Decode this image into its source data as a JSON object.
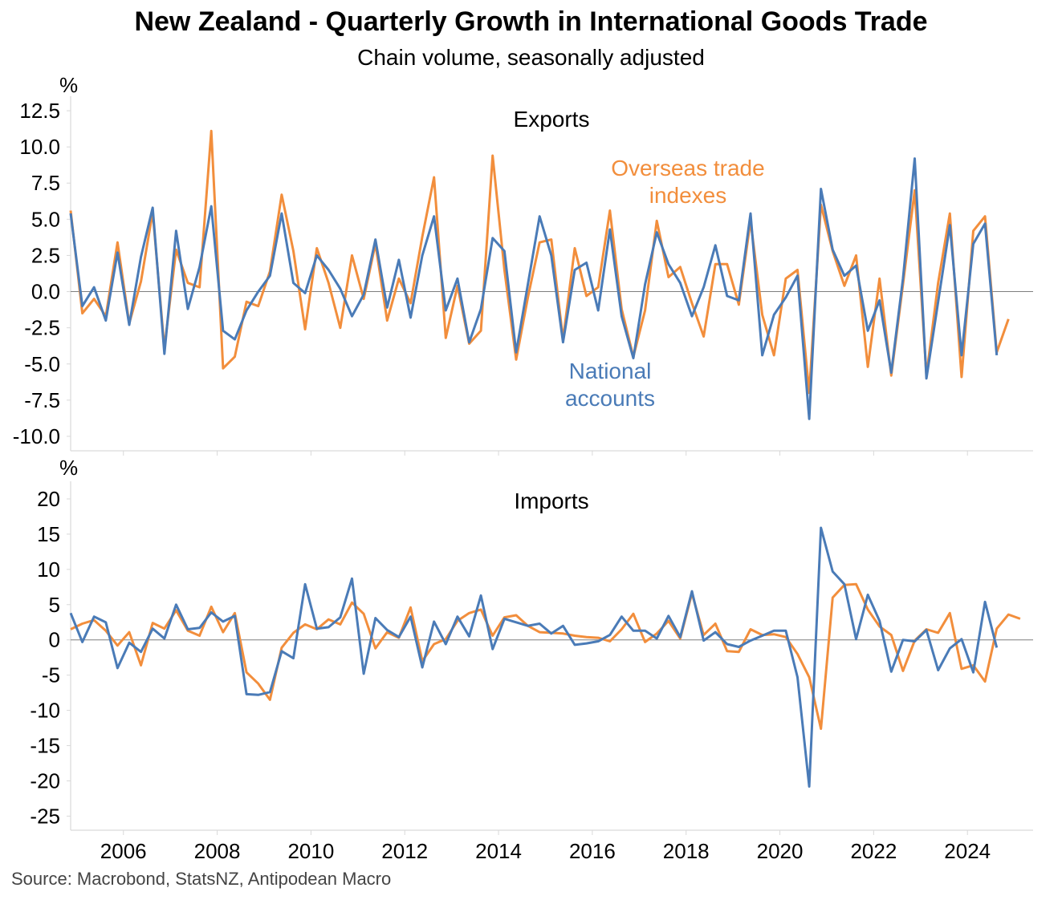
{
  "title": "New Zealand - Quarterly Growth in International Goods Trade",
  "subtitle": "Chain volume, seasonally adjusted",
  "source": "Source: Macrobond, StatsNZ, Antipodean Macro",
  "colors": {
    "overseas_trade_indexes": "#F28E3C",
    "national_accounts": "#4A7BB7",
    "zero_line": "#7f7f7f",
    "axis": "#d9d9d9"
  },
  "chart_data": [
    {
      "type": "line",
      "panel_title": "Exports",
      "ylabel": "%",
      "ylim": [
        -11,
        13.5
      ],
      "yticks": [
        12.5,
        10.0,
        7.5,
        5.0,
        2.5,
        0.0,
        -2.5,
        -5.0,
        -7.5,
        -10.0
      ],
      "ytick_labels": [
        "12.5",
        "10.0",
        "7.5",
        "5.0",
        "2.5",
        "0.0",
        "-2.5",
        "-5.0",
        "-7.5",
        "-10.0"
      ],
      "xlim": [
        2004.875,
        2025.4
      ],
      "x_start": 2004.875,
      "x_step": 0.25,
      "series": [
        {
          "name": "Overseas trade indexes",
          "annotation": [
            "Overseas trade",
            "indexes"
          ],
          "color": "#F28E3C",
          "values": [
            5.6,
            -1.5,
            -0.5,
            -1.7,
            3.4,
            -2.2,
            0.7,
            5.5,
            -3.9,
            2.9,
            0.6,
            0.3,
            11.1,
            -5.3,
            -4.5,
            -0.7,
            -1.0,
            1.4,
            6.7,
            2.8,
            -2.6,
            3.0,
            0.6,
            -2.5,
            2.5,
            -0.5,
            3.3,
            -2.0,
            0.9,
            -0.8,
            3.8,
            7.9,
            -3.2,
            0.4,
            -3.6,
            -2.7,
            9.4,
            1.5,
            -4.7,
            -0.4,
            3.4,
            3.6,
            -3.3,
            3.0,
            -0.3,
            0.3,
            5.6,
            -1.2,
            -4.5,
            -1.3,
            4.9,
            1.0,
            1.7,
            -0.8,
            -3.1,
            1.9,
            1.9,
            -0.9,
            4.9,
            -1.6,
            -4.4,
            0.9,
            1.5,
            -7.0,
            6.0,
            2.8,
            0.4,
            2.5,
            -5.2,
            0.9,
            -5.8,
            0.5,
            7.0,
            -5.8,
            0.6,
            5.4,
            -5.9,
            4.2,
            5.2,
            -4.2,
            -1.9
          ]
        },
        {
          "name": "National accounts",
          "annotation": [
            "National",
            "accounts"
          ],
          "color": "#4A7BB7",
          "values": [
            5.4,
            -1.0,
            0.3,
            -2.0,
            2.7,
            -2.3,
            2.4,
            5.8,
            -4.3,
            4.2,
            -1.2,
            1.7,
            5.9,
            -2.7,
            -3.3,
            -1.3,
            0.0,
            1.1,
            5.4,
            0.6,
            -0.1,
            2.5,
            1.5,
            0.2,
            -1.7,
            -0.2,
            3.6,
            -1.1,
            2.2,
            -1.8,
            2.5,
            5.2,
            -1.3,
            0.9,
            -3.5,
            -1.2,
            3.7,
            2.8,
            -4.2,
            0.5,
            5.2,
            2.5,
            -3.5,
            1.5,
            2.0,
            -1.3,
            4.3,
            -1.7,
            -4.6,
            0.5,
            4.1,
            1.9,
            0.6,
            -1.7,
            0.3,
            3.2,
            -0.3,
            -0.6,
            5.4,
            -4.4,
            -1.6,
            -0.4,
            1.1,
            -8.8,
            7.1,
            2.9,
            1.1,
            1.8,
            -2.7,
            -0.6,
            -5.6,
            0.9,
            9.2,
            -6.0,
            -0.7,
            4.6,
            -4.4,
            3.3,
            4.7,
            -4.4
          ]
        }
      ]
    },
    {
      "type": "line",
      "panel_title": "Imports",
      "ylabel": "%",
      "ylim": [
        -27,
        22.5
      ],
      "yticks": [
        20,
        15,
        10,
        5,
        0,
        -5,
        -10,
        -15,
        -20,
        -25
      ],
      "ytick_labels": [
        "20",
        "15",
        "10",
        "5",
        "0",
        "-5",
        "-10",
        "-15",
        "-20",
        "-25"
      ],
      "xlim": [
        2004.875,
        2025.4
      ],
      "x_start": 2004.875,
      "x_step": 0.25,
      "xticks": [
        2006,
        2008,
        2010,
        2012,
        2014,
        2016,
        2018,
        2020,
        2022,
        2024
      ],
      "xtick_labels": [
        "2006",
        "2008",
        "2010",
        "2012",
        "2014",
        "2016",
        "2018",
        "2020",
        "2022",
        "2024"
      ],
      "series": [
        {
          "name": "Overseas trade indexes",
          "color": "#F28E3C",
          "values": [
            1.5,
            2.3,
            2.8,
            1.3,
            -0.8,
            1.1,
            -3.6,
            2.4,
            1.6,
            4.2,
            1.3,
            0.6,
            4.7,
            1.1,
            3.8,
            -4.6,
            -6.2,
            -8.5,
            -1.1,
            1.0,
            2.2,
            1.5,
            2.9,
            2.2,
            5.3,
            3.7,
            -1.2,
            1.1,
            0.3,
            4.6,
            -3.0,
            -0.6,
            0.1,
            2.7,
            3.8,
            4.3,
            0.6,
            3.2,
            3.5,
            2.0,
            1.1,
            1.0,
            0.9,
            0.6,
            0.4,
            0.3,
            -0.2,
            1.5,
            3.7,
            -0.3,
            0.9,
            2.7,
            0.2,
            6.6,
            0.7,
            2.3,
            -1.6,
            -1.7,
            1.5,
            0.7,
            0.8,
            0.4,
            -2.0,
            -5.3,
            -12.6,
            6.0,
            7.8,
            7.9,
            4.3,
            1.9,
            0.7,
            -4.4,
            -0.1,
            1.5,
            1.0,
            3.8,
            -4.1,
            -3.6,
            -5.9,
            1.6,
            3.6,
            3.0
          ]
        },
        {
          "name": "National accounts",
          "color": "#4A7BB7",
          "values": [
            3.8,
            -0.3,
            3.3,
            2.5,
            -4.0,
            -0.4,
            -1.7,
            1.6,
            0.2,
            5.0,
            1.5,
            1.7,
            3.9,
            2.6,
            3.4,
            -7.7,
            -7.8,
            -7.4,
            -1.6,
            -2.6,
            7.9,
            1.6,
            1.8,
            3.2,
            8.7,
            -4.8,
            3.1,
            1.4,
            0.4,
            3.3,
            -3.9,
            2.6,
            -0.6,
            3.3,
            0.5,
            6.3,
            -1.3,
            3.0,
            2.5,
            2.0,
            2.3,
            0.9,
            2.0,
            -0.7,
            -0.5,
            -0.2,
            0.7,
            3.3,
            1.3,
            1.3,
            0.2,
            3.4,
            0.4,
            6.9,
            -0.1,
            1.1,
            -0.6,
            -1.0,
            -0.1,
            0.6,
            1.3,
            1.3,
            -5.3,
            -20.8,
            15.9,
            9.7,
            7.9,
            0.1,
            6.4,
            2.7,
            -4.5,
            0.0,
            -0.2,
            1.4,
            -4.3,
            -1.2,
            0.1,
            -4.6,
            5.4,
            -1.1
          ]
        }
      ]
    }
  ]
}
